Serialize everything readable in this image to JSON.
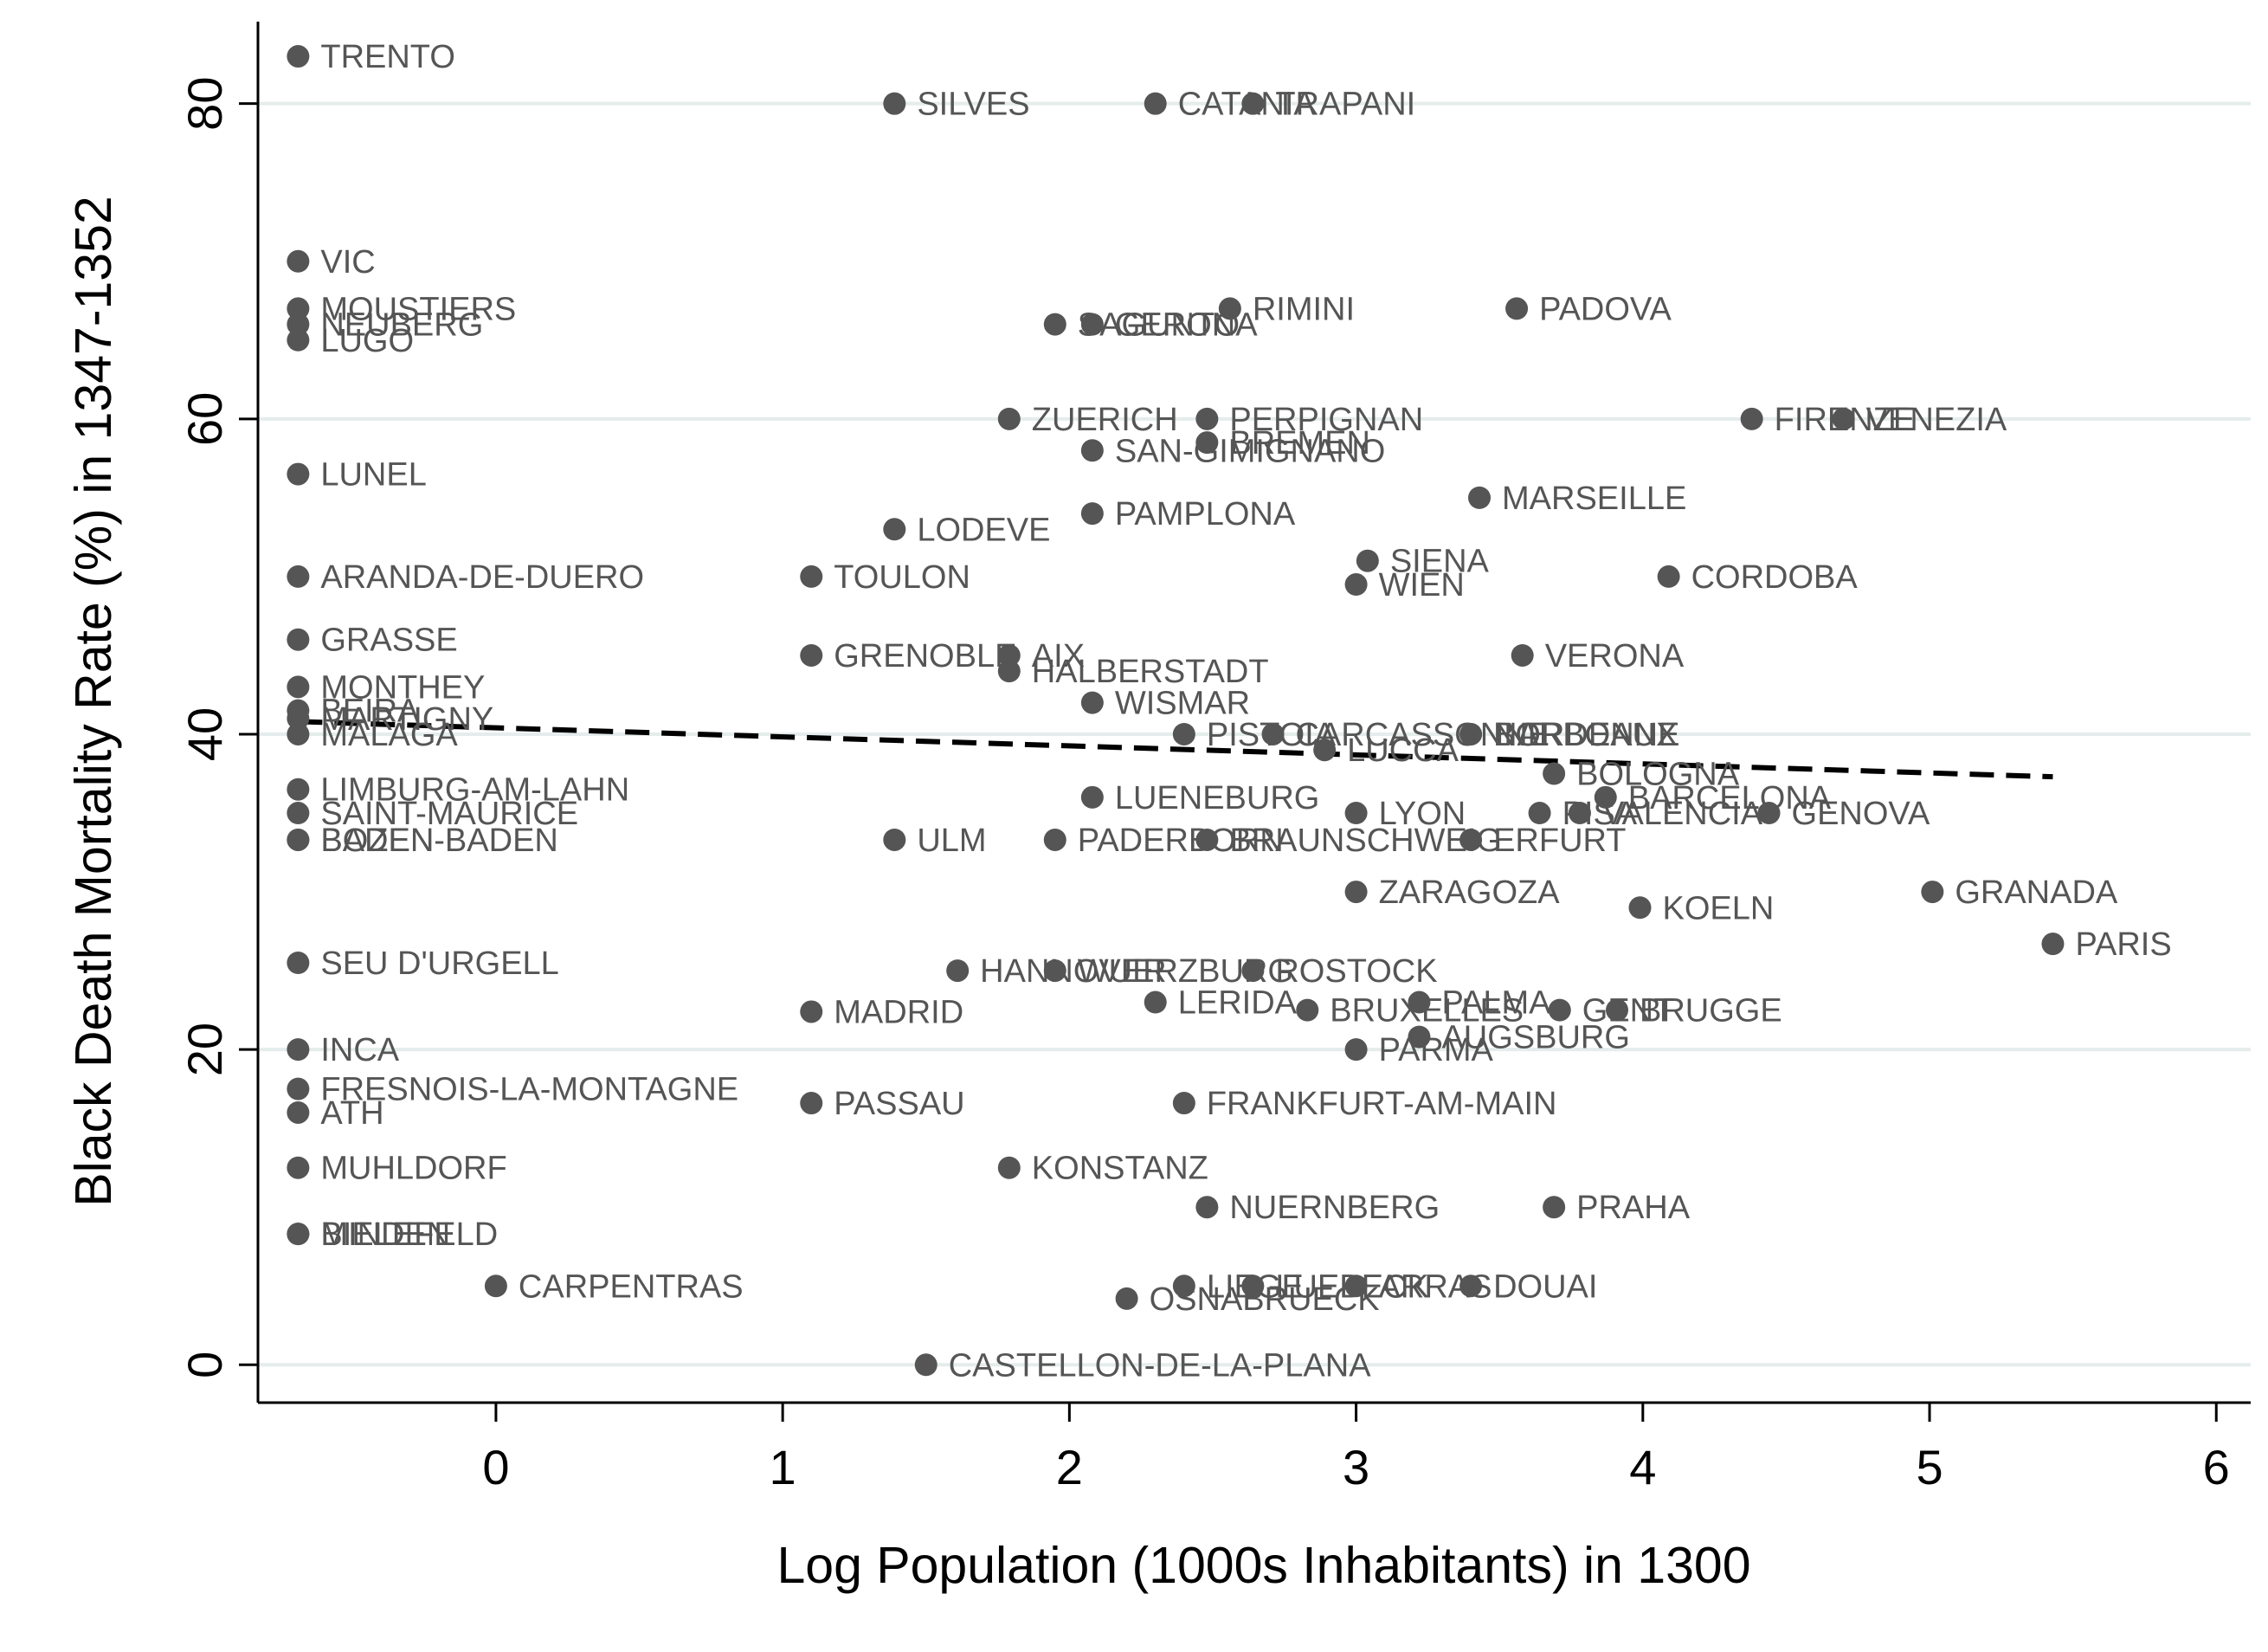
{
  "chart_data": {
    "type": "scatter",
    "title": "",
    "xlabel": "Log Population (1000s Inhabitants) in 1300",
    "ylabel": "Black Death Mortality Rate (%) in 1347-1352",
    "xlim": [
      -0.83,
      6.12
    ],
    "ylim": [
      -2.4,
      85.2
    ],
    "xticks": [
      0,
      1,
      2,
      3,
      4,
      5,
      6
    ],
    "yticks": [
      0,
      20,
      40,
      60,
      80
    ],
    "grid": "horizontal",
    "legend": "none",
    "colors": {
      "point": "#555555",
      "label": "#555555",
      "fit": "#000000",
      "grid": "#e5ecec"
    },
    "fit_line": {
      "style": "dashed",
      "x": [
        -0.69,
        5.43
      ],
      "y": [
        40.8,
        37.3
      ]
    },
    "points": [
      {
        "label": "TRENTO",
        "x": -0.69,
        "y": 83
      },
      {
        "label": "SILVES",
        "x": 1.39,
        "y": 80
      },
      {
        "label": "CATANIA",
        "x": 2.3,
        "y": 80
      },
      {
        "label": "TRAPANI",
        "x": 2.64,
        "y": 80
      },
      {
        "label": "VIC",
        "x": -0.69,
        "y": 70
      },
      {
        "label": "MOUSTIERS",
        "x": -0.69,
        "y": 67
      },
      {
        "label": "NEUBERG",
        "x": -0.69,
        "y": 66
      },
      {
        "label": "LUGO",
        "x": -0.69,
        "y": 65
      },
      {
        "label": "RIMINI",
        "x": 2.56,
        "y": 67
      },
      {
        "label": "PADOVA",
        "x": 3.56,
        "y": 67
      },
      {
        "label": "SAGUNTO",
        "x": 1.95,
        "y": 66
      },
      {
        "label": "GERONA",
        "x": 2.08,
        "y": 66
      },
      {
        "label": "ZUERICH",
        "x": 1.79,
        "y": 60
      },
      {
        "label": "PERPIGNAN",
        "x": 2.48,
        "y": 60
      },
      {
        "label": "FIRENZE",
        "x": 4.38,
        "y": 60
      },
      {
        "label": "VENEZIA",
        "x": 4.7,
        "y": 60
      },
      {
        "label": "BREMEN",
        "x": 2.48,
        "y": 58.5
      },
      {
        "label": "SAN-GIMIGNANO",
        "x": 2.08,
        "y": 58
      },
      {
        "label": "LUNEL",
        "x": -0.69,
        "y": 56.5
      },
      {
        "label": "MARSEILLE",
        "x": 3.43,
        "y": 55
      },
      {
        "label": "PAMPLONA",
        "x": 2.08,
        "y": 54
      },
      {
        "label": "LODEVE",
        "x": 1.39,
        "y": 53
      },
      {
        "label": "SIENA",
        "x": 3.04,
        "y": 51
      },
      {
        "label": "ARANDA-DE-DUERO",
        "x": -0.69,
        "y": 50
      },
      {
        "label": "TOULON",
        "x": 1.1,
        "y": 50
      },
      {
        "label": "CORDOBA",
        "x": 4.09,
        "y": 50
      },
      {
        "label": "WIEN",
        "x": 3.0,
        "y": 49.5
      },
      {
        "label": "GRASSE",
        "x": -0.69,
        "y": 46
      },
      {
        "label": "GRENOBLE",
        "x": 1.1,
        "y": 45
      },
      {
        "label": "AIX",
        "x": 1.79,
        "y": 45
      },
      {
        "label": "HALBERSTADT",
        "x": 1.79,
        "y": 44
      },
      {
        "label": "VERONA",
        "x": 3.58,
        "y": 45
      },
      {
        "label": "MONTHEY",
        "x": -0.69,
        "y": 43
      },
      {
        "label": "WISMAR",
        "x": 2.08,
        "y": 42
      },
      {
        "label": "BEIRA",
        "x": -0.69,
        "y": 41.5
      },
      {
        "label": "MARTIGNY",
        "x": -0.69,
        "y": 41
      },
      {
        "label": "MALAGA",
        "x": -0.69,
        "y": 40
      },
      {
        "label": "PISTOIA",
        "x": 2.4,
        "y": 40
      },
      {
        "label": "CARCASSONNE",
        "x": 2.71,
        "y": 40
      },
      {
        "label": "NARBONNE",
        "x": 3.4,
        "y": 40
      },
      {
        "label": "BORDEAUX",
        "x": 3.4,
        "y": 40
      },
      {
        "label": "LUCCA",
        "x": 2.89,
        "y": 39
      },
      {
        "label": "BOLOGNA",
        "x": 3.69,
        "y": 37.5
      },
      {
        "label": "LIMBURG-AM-LAHN",
        "x": -0.69,
        "y": 36.5
      },
      {
        "label": "LUENEBURG",
        "x": 2.08,
        "y": 36
      },
      {
        "label": "BARCELONA",
        "x": 3.87,
        "y": 36
      },
      {
        "label": "SAINT-MAURICE",
        "x": -0.69,
        "y": 35
      },
      {
        "label": "LYON",
        "x": 3.0,
        "y": 35
      },
      {
        "label": "PISA",
        "x": 3.64,
        "y": 35
      },
      {
        "label": "VALENCIA",
        "x": 3.78,
        "y": 35
      },
      {
        "label": "GENOVA",
        "x": 4.44,
        "y": 35
      },
      {
        "label": "BADEN-BADEN",
        "x": -0.69,
        "y": 33.3
      },
      {
        "label": "BOZEN",
        "x": -0.69,
        "y": 33.3
      },
      {
        "label": "ULM",
        "x": 1.39,
        "y": 33.3
      },
      {
        "label": "PADERBORN",
        "x": 1.95,
        "y": 33.3
      },
      {
        "label": "BRAUNSCHWEIG",
        "x": 2.48,
        "y": 33.3
      },
      {
        "label": "ERFURT",
        "x": 3.4,
        "y": 33.3
      },
      {
        "label": "ZARAGOZA",
        "x": 3.0,
        "y": 30
      },
      {
        "label": "GRANADA",
        "x": 5.01,
        "y": 30
      },
      {
        "label": "KOELN",
        "x": 3.99,
        "y": 29
      },
      {
        "label": "PARIS",
        "x": 5.43,
        "y": 26.7
      },
      {
        "label": "SEU D'URGELL",
        "x": -0.69,
        "y": 25.5
      },
      {
        "label": "HANNOVER",
        "x": 1.61,
        "y": 25
      },
      {
        "label": "WUERZBURG",
        "x": 1.95,
        "y": 25
      },
      {
        "label": "ROSTOCK",
        "x": 2.64,
        "y": 25
      },
      {
        "label": "LERIDA",
        "x": 2.3,
        "y": 23
      },
      {
        "label": "PALMA",
        "x": 3.22,
        "y": 23
      },
      {
        "label": "MADRID",
        "x": 1.1,
        "y": 22.4
      },
      {
        "label": "BRUXELLES",
        "x": 2.83,
        "y": 22.5
      },
      {
        "label": "GENT",
        "x": 3.71,
        "y": 22.5
      },
      {
        "label": "BRUGGE",
        "x": 3.91,
        "y": 22.5
      },
      {
        "label": "AUGSBURG",
        "x": 3.22,
        "y": 20.8
      },
      {
        "label": "INCA",
        "x": -0.69,
        "y": 20
      },
      {
        "label": "PARMA",
        "x": 3.0,
        "y": 20
      },
      {
        "label": "FRESNOIS-LA-MONTAGNE",
        "x": -0.69,
        "y": 17.5
      },
      {
        "label": "PASSAU",
        "x": 1.1,
        "y": 16.6
      },
      {
        "label": "FRANKFURT-AM-MAIN",
        "x": 2.4,
        "y": 16.6
      },
      {
        "label": "ATH",
        "x": -0.69,
        "y": 16
      },
      {
        "label": "MUHLDORF",
        "x": -0.69,
        "y": 12.5
      },
      {
        "label": "KONSTANZ",
        "x": 1.79,
        "y": 12.5
      },
      {
        "label": "NUERNBERG",
        "x": 2.48,
        "y": 10
      },
      {
        "label": "PRAHA",
        "x": 3.69,
        "y": 10
      },
      {
        "label": "BIELEFELD",
        "x": -0.69,
        "y": 8.3
      },
      {
        "label": "MINDEN",
        "x": -0.69,
        "y": 8.3
      },
      {
        "label": "CARPENTRAS",
        "x": 0.0,
        "y": 5
      },
      {
        "label": "LIEGE",
        "x": 2.4,
        "y": 5
      },
      {
        "label": "LUEBECK",
        "x": 2.64,
        "y": 5
      },
      {
        "label": "ARRAS",
        "x": 3.0,
        "y": 5
      },
      {
        "label": "DOUAI",
        "x": 3.4,
        "y": 5
      },
      {
        "label": "OSNABRUECK",
        "x": 2.2,
        "y": 4.2
      },
      {
        "label": "CASTELLON-DE-LA-PLANA",
        "x": 1.5,
        "y": 0
      }
    ]
  }
}
